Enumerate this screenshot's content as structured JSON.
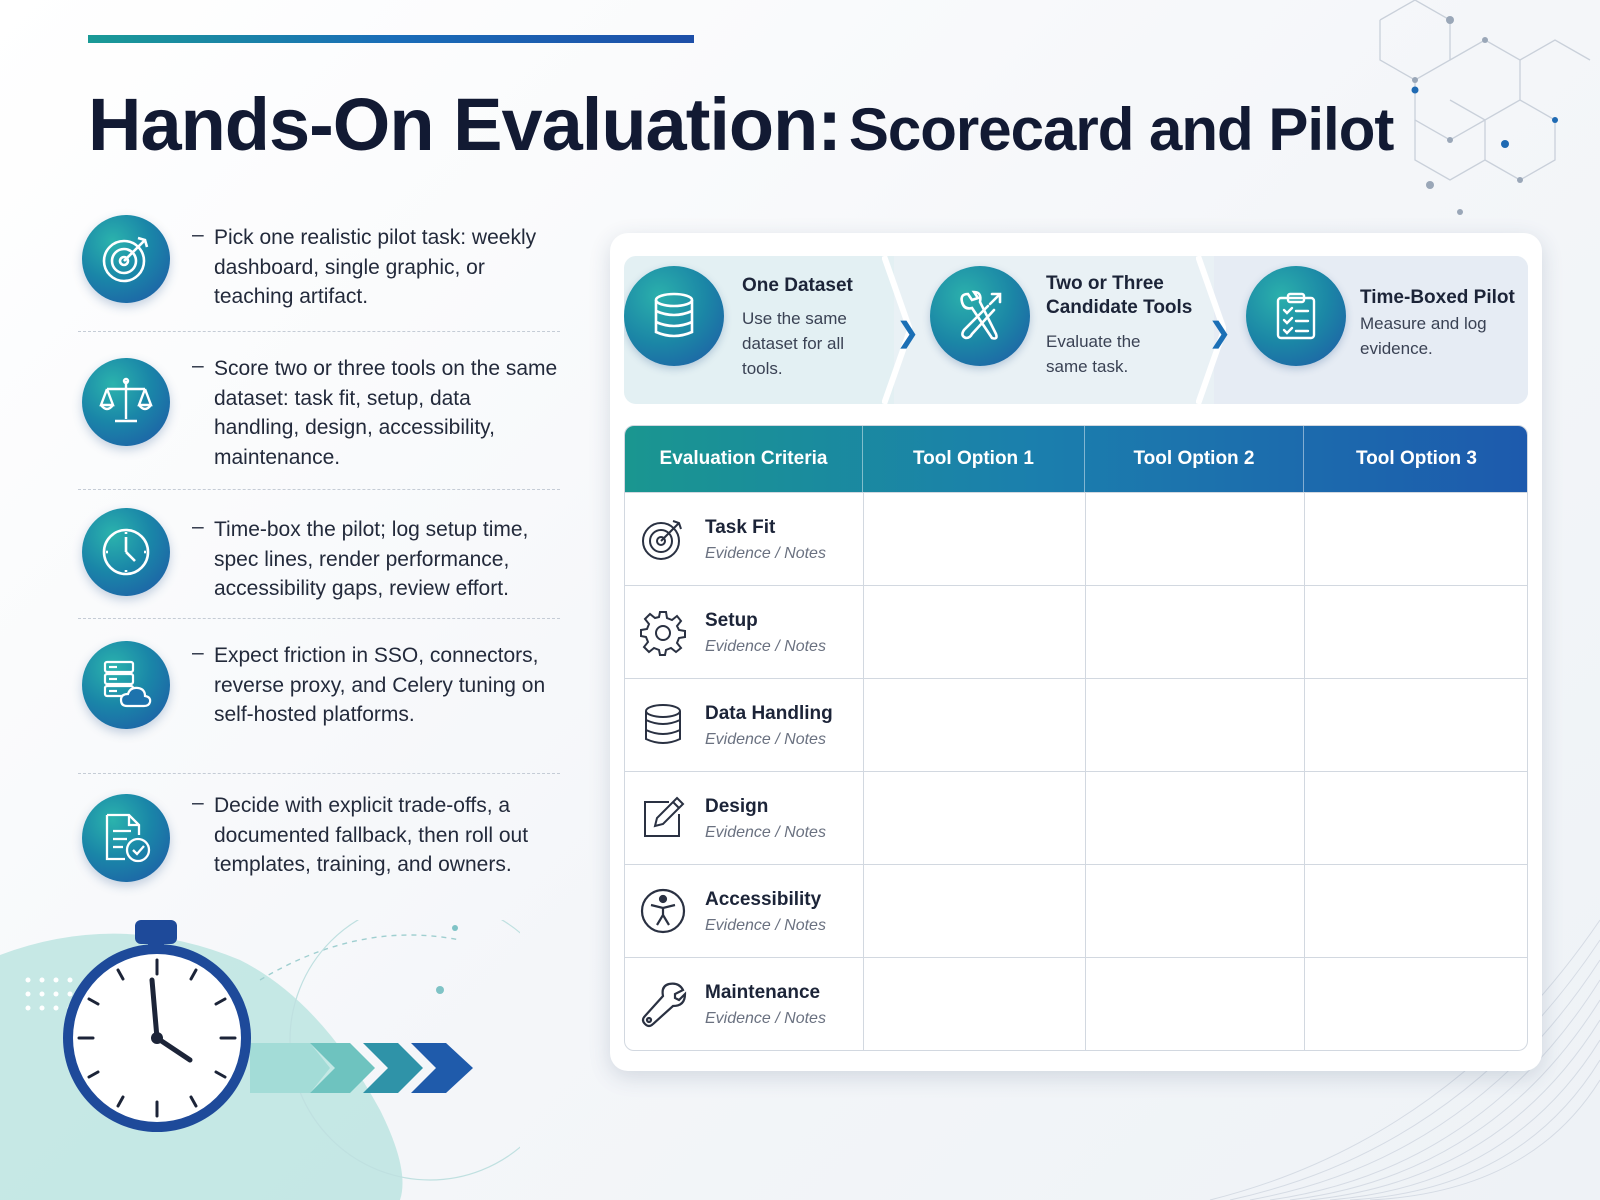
{
  "title": {
    "main": "Hands-On Evaluation:",
    "sub": "Scorecard and Pilot"
  },
  "bullets": [
    {
      "icon": "target-icon",
      "dash": "–",
      "text": "Pick one realistic pilot task: weekly dashboard, single graphic, or teaching artifact."
    },
    {
      "icon": "scale-icon",
      "dash": "–",
      "text": "Score two or three tools on the same dataset: task fit, setup, data handling, design, accessibility, maintenance."
    },
    {
      "icon": "clock-icon",
      "dash": "–",
      "text": "Time-box the pilot; log setup time, spec lines, render performance, accessibility gaps, review effort."
    },
    {
      "icon": "server-cloud-icon",
      "dash": "–",
      "text": "Expect friction in SSO, connectors, reverse proxy, and Celery tuning on self-hosted platforms."
    },
    {
      "icon": "document-check-icon",
      "dash": "–",
      "text": "Decide with explicit trade-offs, a documented fallback, then roll out templates, training, and owners."
    }
  ],
  "steps": [
    {
      "icon": "database-icon",
      "title": "One Dataset",
      "desc": "Use the same dataset for all tools."
    },
    {
      "icon": "tools-icon",
      "title": "Two or Three Candidate Tools",
      "desc": "Evaluate the same task."
    },
    {
      "icon": "clipboard-checklist-icon",
      "title": "Time-Boxed Pilot",
      "desc": "Measure and log evidence."
    }
  ],
  "step_chevron": "❯",
  "table": {
    "headers": [
      "Evaluation Criteria",
      "Tool Option 1",
      "Tool Option 2",
      "Tool Option 3"
    ],
    "rows": [
      {
        "icon": "target-icon",
        "name": "Task Fit",
        "note": "Evidence / Notes"
      },
      {
        "icon": "gear-icon",
        "name": "Setup",
        "note": "Evidence / Notes"
      },
      {
        "icon": "database-icon",
        "name": "Data Handling",
        "note": "Evidence / Notes"
      },
      {
        "icon": "pencil-icon",
        "name": "Design",
        "note": "Evidence / Notes"
      },
      {
        "icon": "accessibility-icon",
        "name": "Accessibility",
        "note": "Evidence / Notes"
      },
      {
        "icon": "wrench-icon",
        "name": "Maintenance",
        "note": "Evidence / Notes"
      }
    ]
  },
  "colors": {
    "teal": "#1a9a96",
    "blue": "#1d55a8",
    "navy": "#121a33"
  }
}
